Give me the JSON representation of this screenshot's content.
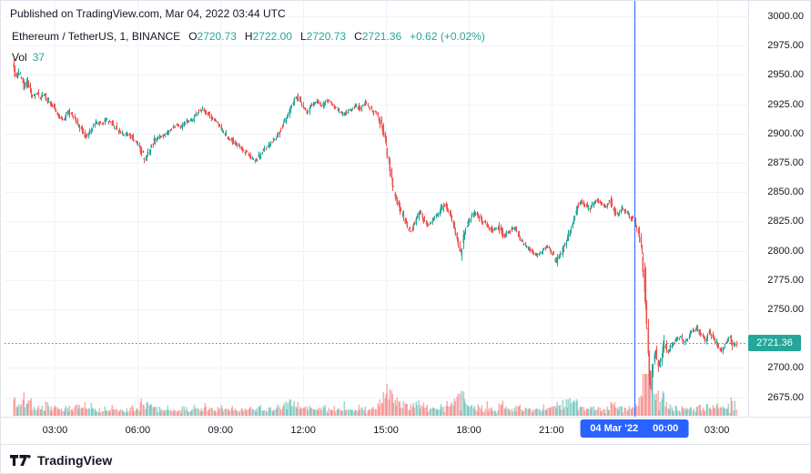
{
  "header": {
    "published": "Published on TradingView.com, Mar 04, 2022 03:44 UTC",
    "symbol": "Ethereum / TetherUS, 1, BINANCE",
    "ohlc": [
      {
        "k": "O",
        "v": "2720.73"
      },
      {
        "k": "H",
        "v": "2722.00"
      },
      {
        "k": "L",
        "v": "2720.73"
      },
      {
        "k": "C",
        "v": "2721.36"
      }
    ],
    "change": "+0.62 (+0.02%)",
    "vol_label": "Vol",
    "vol_value": "37"
  },
  "footer": {
    "brand": "TradingView"
  },
  "colors": {
    "up": "#26a69a",
    "down": "#ef5350",
    "session_blue": "#2962ff",
    "grid": "#f0f3fa",
    "separator": "#e0e3eb",
    "axis_text": "#131722",
    "text": "#131722"
  },
  "chart_data": {
    "type": "candlestick",
    "title": "Ethereum / TetherUS, 1, BINANCE",
    "symbol": "ETHUSDT",
    "interval_minutes": 1,
    "exchange": "BINANCE",
    "last_price": 2721.36,
    "last_price_label": "2721.36",
    "volume_last": 37,
    "x_domain_hours": [
      1.17,
      28.1
    ],
    "y_domain": [
      2658.4,
      3013.2
    ],
    "y_ticks": [
      3000,
      2975,
      2950,
      2925,
      2900,
      2875,
      2850,
      2825,
      2800,
      2775,
      2750,
      2700,
      2675
    ],
    "x_ticks": [
      {
        "hour": 3,
        "label": "03:00"
      },
      {
        "hour": 6,
        "label": "06:00"
      },
      {
        "hour": 9,
        "label": "09:00"
      },
      {
        "hour": 12,
        "label": "12:00"
      },
      {
        "hour": 15,
        "label": "15:00"
      },
      {
        "hour": 18,
        "label": "18:00"
      },
      {
        "hour": 21,
        "label": "21:00"
      },
      {
        "hour": 27,
        "label": "03:00"
      }
    ],
    "grid_hours": [
      3,
      6,
      9,
      12,
      15,
      18,
      21,
      24,
      27
    ],
    "session": {
      "date": "04 Mar '22",
      "time": "00:00",
      "hour": 24
    },
    "candle_step_hours": 0.045,
    "price_path": [
      [
        1.5,
        2958
      ],
      [
        1.62,
        2948
      ],
      [
        1.75,
        2952
      ],
      [
        1.9,
        2940
      ],
      [
        2.05,
        2944
      ],
      [
        2.2,
        2930
      ],
      [
        2.35,
        2936
      ],
      [
        2.5,
        2930
      ],
      [
        2.65,
        2934
      ],
      [
        2.8,
        2926
      ],
      [
        3.0,
        2922
      ],
      [
        3.15,
        2916
      ],
      [
        3.3,
        2912
      ],
      [
        3.5,
        2918
      ],
      [
        3.7,
        2915
      ],
      [
        3.85,
        2908
      ],
      [
        4.0,
        2903
      ],
      [
        4.15,
        2897
      ],
      [
        4.3,
        2902
      ],
      [
        4.5,
        2910
      ],
      [
        4.7,
        2908
      ],
      [
        4.9,
        2912
      ],
      [
        5.1,
        2908
      ],
      [
        5.3,
        2903
      ],
      [
        5.5,
        2899
      ],
      [
        5.7,
        2900
      ],
      [
        5.9,
        2894
      ],
      [
        6.1,
        2888
      ],
      [
        6.3,
        2877
      ],
      [
        6.45,
        2885
      ],
      [
        6.6,
        2893
      ],
      [
        6.8,
        2897
      ],
      [
        7.0,
        2899
      ],
      [
        7.2,
        2903
      ],
      [
        7.4,
        2907
      ],
      [
        7.6,
        2905
      ],
      [
        7.8,
        2910
      ],
      [
        8.0,
        2912
      ],
      [
        8.2,
        2918
      ],
      [
        8.35,
        2922
      ],
      [
        8.5,
        2918
      ],
      [
        8.7,
        2914
      ],
      [
        8.9,
        2910
      ],
      [
        9.1,
        2903
      ],
      [
        9.3,
        2897
      ],
      [
        9.5,
        2893
      ],
      [
        9.7,
        2889
      ],
      [
        9.9,
        2885
      ],
      [
        10.1,
        2880
      ],
      [
        10.3,
        2877
      ],
      [
        10.5,
        2884
      ],
      [
        10.7,
        2889
      ],
      [
        10.9,
        2893
      ],
      [
        11.1,
        2898
      ],
      [
        11.3,
        2908
      ],
      [
        11.5,
        2918
      ],
      [
        11.65,
        2926
      ],
      [
        11.8,
        2932
      ],
      [
        12.0,
        2925
      ],
      [
        12.15,
        2918
      ],
      [
        12.3,
        2924
      ],
      [
        12.5,
        2928
      ],
      [
        12.7,
        2923
      ],
      [
        12.9,
        2929
      ],
      [
        13.1,
        2924
      ],
      [
        13.3,
        2920
      ],
      [
        13.5,
        2916
      ],
      [
        13.7,
        2920
      ],
      [
        13.9,
        2924
      ],
      [
        14.1,
        2921
      ],
      [
        14.3,
        2926
      ],
      [
        14.5,
        2921
      ],
      [
        14.7,
        2916
      ],
      [
        14.9,
        2905
      ],
      [
        15.05,
        2888
      ],
      [
        15.2,
        2866
      ],
      [
        15.35,
        2848
      ],
      [
        15.5,
        2838
      ],
      [
        15.65,
        2830
      ],
      [
        15.8,
        2820
      ],
      [
        15.95,
        2817
      ],
      [
        16.1,
        2826
      ],
      [
        16.25,
        2834
      ],
      [
        16.4,
        2826
      ],
      [
        16.55,
        2820
      ],
      [
        16.7,
        2826
      ],
      [
        16.85,
        2830
      ],
      [
        17.0,
        2834
      ],
      [
        17.15,
        2839
      ],
      [
        17.3,
        2833
      ],
      [
        17.45,
        2824
      ],
      [
        17.6,
        2812
      ],
      [
        17.72,
        2796
      ],
      [
        17.85,
        2814
      ],
      [
        18.0,
        2824
      ],
      [
        18.15,
        2830
      ],
      [
        18.3,
        2832
      ],
      [
        18.5,
        2826
      ],
      [
        18.7,
        2821
      ],
      [
        18.9,
        2817
      ],
      [
        19.1,
        2820
      ],
      [
        19.3,
        2812
      ],
      [
        19.5,
        2817
      ],
      [
        19.7,
        2820
      ],
      [
        19.9,
        2809
      ],
      [
        20.1,
        2804
      ],
      [
        20.3,
        2799
      ],
      [
        20.5,
        2796
      ],
      [
        20.7,
        2801
      ],
      [
        20.9,
        2804
      ],
      [
        21.05,
        2798
      ],
      [
        21.2,
        2791
      ],
      [
        21.35,
        2797
      ],
      [
        21.5,
        2804
      ],
      [
        21.65,
        2812
      ],
      [
        21.8,
        2824
      ],
      [
        21.95,
        2838
      ],
      [
        22.1,
        2843
      ],
      [
        22.25,
        2839
      ],
      [
        22.4,
        2835
      ],
      [
        22.55,
        2841
      ],
      [
        22.7,
        2844
      ],
      [
        22.85,
        2840
      ],
      [
        23.0,
        2838
      ],
      [
        23.15,
        2842
      ],
      [
        23.3,
        2834
      ],
      [
        23.45,
        2830
      ],
      [
        23.6,
        2836
      ],
      [
        23.75,
        2833
      ],
      [
        23.9,
        2829
      ],
      [
        24.05,
        2824
      ],
      [
        24.2,
        2814
      ],
      [
        24.32,
        2798
      ],
      [
        24.42,
        2766
      ],
      [
        24.52,
        2722
      ],
      [
        24.62,
        2684
      ],
      [
        24.72,
        2704
      ],
      [
        24.82,
        2716
      ],
      [
        24.92,
        2699
      ],
      [
        25.02,
        2710
      ],
      [
        25.12,
        2721
      ],
      [
        25.25,
        2714
      ],
      [
        25.4,
        2719
      ],
      [
        25.55,
        2724
      ],
      [
        25.7,
        2727
      ],
      [
        25.85,
        2721
      ],
      [
        26.0,
        2727
      ],
      [
        26.15,
        2731
      ],
      [
        26.3,
        2734
      ],
      [
        26.45,
        2728
      ],
      [
        26.6,
        2724
      ],
      [
        26.75,
        2731
      ],
      [
        26.9,
        2727
      ],
      [
        27.05,
        2719
      ],
      [
        27.2,
        2715
      ],
      [
        27.35,
        2721
      ],
      [
        27.5,
        2726
      ],
      [
        27.62,
        2718
      ],
      [
        27.73,
        2721.36
      ]
    ]
  }
}
